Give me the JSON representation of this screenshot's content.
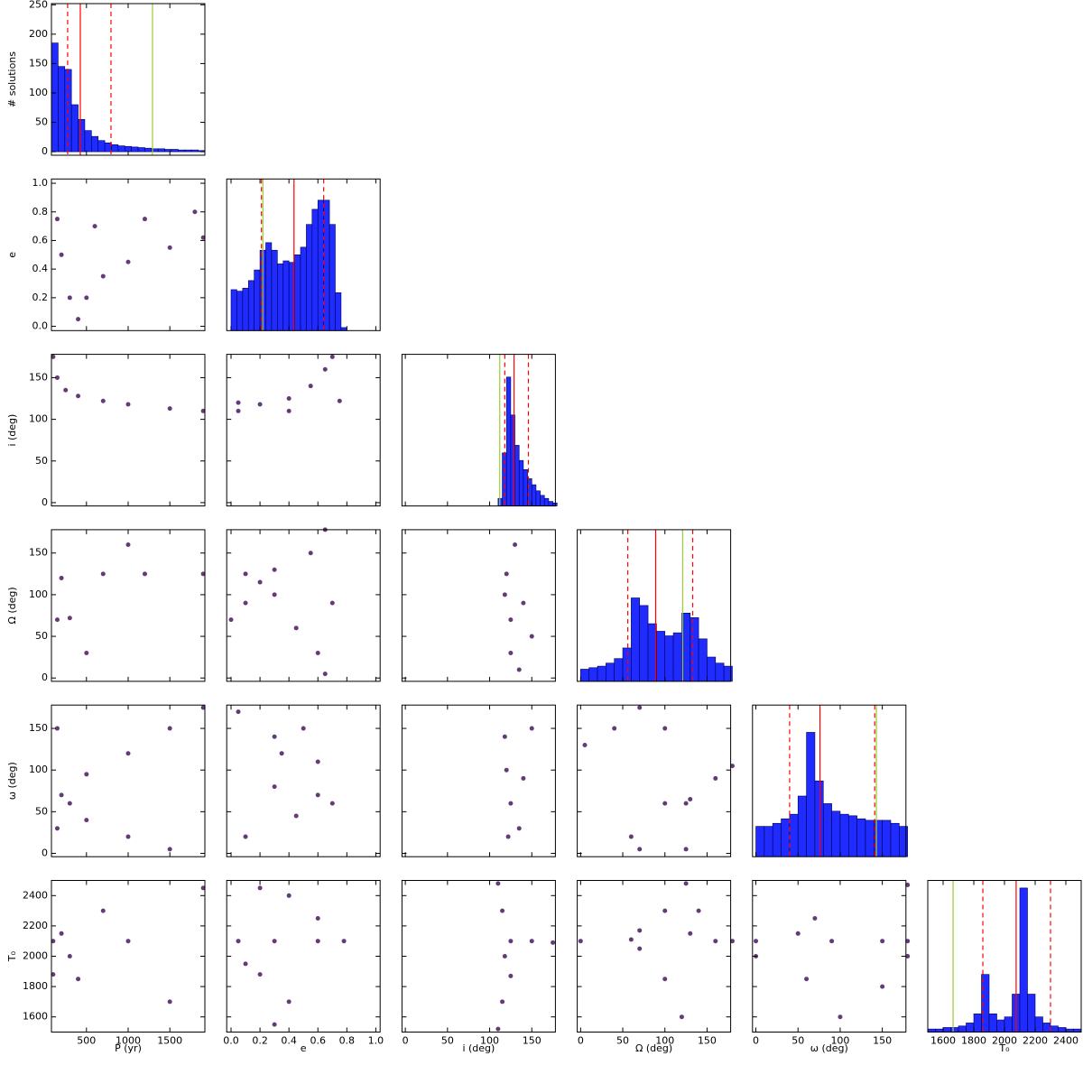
{
  "chart_data": {
    "type": "corner",
    "parameters": [
      {
        "label": "P (yr)",
        "lim": [
          80,
          1920
        ],
        "ticks": [
          500,
          1000,
          1500
        ]
      },
      {
        "label": "e",
        "lim": [
          -0.03,
          1.03
        ],
        "ticks": [
          {
            "value": 0,
            "label": "0.0"
          },
          0.2,
          0.4,
          0.6,
          0.8,
          {
            "value": 1,
            "label": "1.0"
          }
        ]
      },
      {
        "label": "i (deg)",
        "lim": [
          -4,
          178
        ],
        "ticks": [
          0,
          50,
          100,
          150
        ]
      },
      {
        "label": "Ω (deg)",
        "lim": [
          -4,
          178
        ],
        "ticks": [
          0,
          50,
          100,
          150
        ]
      },
      {
        "label": "ω (deg)",
        "lim": [
          -4,
          178
        ],
        "ticks": [
          0,
          50,
          100,
          150
        ]
      },
      {
        "label": "T₀",
        "lim": [
          1500,
          2500
        ],
        "ticks": [
          1600,
          1800,
          2000,
          2200,
          2400
        ]
      }
    ],
    "histogram_color": "#1f2bff",
    "median_color": "#ff0000",
    "truth_color": "#9acd32",
    "point_color": "#3d0a55",
    "histograms": [
      {
        "ylabel": "# solutions",
        "ylim": [
          -6,
          252
        ],
        "yticks": [
          0,
          50,
          100,
          150,
          200,
          250
        ],
        "bins": [
          80,
          160,
          240,
          320,
          400,
          480,
          560,
          640,
          720,
          800,
          880,
          960,
          1040,
          1120,
          1200,
          1280,
          1360,
          1440,
          1520,
          1600,
          1680,
          1760,
          1840,
          1920
        ],
        "counts": [
          185,
          145,
          140,
          80,
          55,
          36,
          26,
          19,
          15,
          12,
          10,
          9,
          8,
          7,
          6,
          5,
          5,
          4,
          4,
          3,
          3,
          3,
          2
        ],
        "lower": 274,
        "median": 426,
        "upper": 794,
        "truth": 1292
      },
      {
        "ylim": [
          0,
          1
        ],
        "bins": [
          0,
          0.04,
          0.08,
          0.12,
          0.16,
          0.2,
          0.24,
          0.28,
          0.32,
          0.36,
          0.4,
          0.44,
          0.48,
          0.52,
          0.56,
          0.6,
          0.64,
          0.68,
          0.72,
          0.76,
          0.8,
          0.84,
          0.88,
          0.92,
          0.96,
          1
        ],
        "counts": [
          0.27,
          0.26,
          0.28,
          0.33,
          0.4,
          0.53,
          0.58,
          0.53,
          0.44,
          0.46,
          0.45,
          0.5,
          0.55,
          0.7,
          0.8,
          0.86,
          0.86,
          0.7,
          0.25,
          0.02,
          0,
          0,
          0,
          0,
          0
        ],
        "lower": 0.21,
        "median": 0.435,
        "upper": 0.64,
        "truth": 0.22
      },
      {
        "ylim": [
          0,
          1
        ],
        "bins": [
          0,
          5,
          10,
          15,
          20,
          25,
          30,
          35,
          40,
          45,
          50,
          55,
          60,
          65,
          70,
          75,
          80,
          85,
          90,
          95,
          100,
          105,
          110,
          115,
          120,
          125,
          130,
          135,
          140,
          145,
          150,
          155,
          160,
          165,
          170,
          175,
          180
        ],
        "counts": [
          0,
          0,
          0,
          0,
          0,
          0,
          0,
          0,
          0,
          0,
          0,
          0,
          0,
          0,
          0,
          0,
          0,
          0,
          0,
          0,
          0,
          0,
          0.05,
          0.35,
          0.85,
          0.6,
          0.4,
          0.3,
          0.24,
          0.18,
          0.14,
          0.1,
          0.07,
          0.05,
          0.03,
          0.02
        ],
        "lower": 118,
        "median": 129,
        "upper": 146,
        "truth": 112
      },
      {
        "ylim": [
          0,
          1
        ],
        "bins": [
          0,
          10,
          20,
          30,
          40,
          50,
          60,
          70,
          80,
          90,
          100,
          110,
          120,
          130,
          140,
          150,
          160,
          170,
          180
        ],
        "counts": [
          0.08,
          0.09,
          0.1,
          0.12,
          0.15,
          0.22,
          0.55,
          0.5,
          0.38,
          0.33,
          0.3,
          0.32,
          0.45,
          0.42,
          0.28,
          0.16,
          0.12,
          0.1
        ],
        "lower": 56,
        "median": 89,
        "upper": 133,
        "truth": 121
      },
      {
        "ylim": [
          0,
          1
        ],
        "bins": [
          0,
          10,
          20,
          30,
          40,
          50,
          60,
          70,
          80,
          90,
          100,
          110,
          120,
          130,
          140,
          150,
          160,
          170,
          180
        ],
        "counts": [
          0.2,
          0.2,
          0.22,
          0.25,
          0.28,
          0.4,
          0.82,
          0.5,
          0.35,
          0.3,
          0.28,
          0.27,
          0.25,
          0.24,
          0.24,
          0.24,
          0.22,
          0.2
        ],
        "lower": 40,
        "median": 76,
        "upper": 141,
        "truth": 143
      },
      {
        "ylim": [
          0,
          1
        ],
        "bins": [
          1500,
          1550,
          1600,
          1650,
          1700,
          1750,
          1800,
          1850,
          1900,
          1950,
          2000,
          2050,
          2100,
          2150,
          2200,
          2250,
          2300,
          2350,
          2400,
          2450,
          2500
        ],
        "counts": [
          0.02,
          0.02,
          0.03,
          0.03,
          0.04,
          0.06,
          0.12,
          0.38,
          0.12,
          0.08,
          0.1,
          0.25,
          0.95,
          0.25,
          0.1,
          0.06,
          0.04,
          0.03,
          0.02,
          0.02
        ],
        "lower": 1859,
        "median": 2076,
        "upper": 2300,
        "truth": 1665
      }
    ],
    "panels": [
      {
        "x": [
          150,
          200,
          300,
          400,
          500,
          700,
          1000,
          1500,
          1900,
          600,
          1200,
          1800
        ],
        "y": [
          0.75,
          0.5,
          0.2,
          0.05,
          0.2,
          0.35,
          0.45,
          0.55,
          0.62,
          0.7,
          0.75,
          0.8
        ]
      },
      {
        "x": [
          100,
          150,
          250,
          400,
          700,
          1000,
          1500,
          1900
        ],
        "y": [
          175,
          150,
          135,
          128,
          122,
          118,
          113,
          110
        ]
      },
      {
        "x": [
          0.05,
          0.2,
          0.4,
          0.55,
          0.65,
          0.7,
          0.05,
          0.4,
          0.75
        ],
        "y": [
          120,
          118,
          125,
          140,
          160,
          175,
          110,
          110,
          122
        ]
      },
      {
        "x": [
          150,
          300,
          200,
          700,
          1200,
          1900,
          500,
          1000
        ],
        "y": [
          70,
          72,
          120,
          125,
          125,
          125,
          30,
          160
        ]
      },
      {
        "x": [
          0,
          0.1,
          0.2,
          0.3,
          0.45,
          0.6,
          0.65,
          0.1,
          0.3,
          0.55,
          0.65,
          0.7
        ],
        "y": [
          70,
          90,
          115,
          100,
          60,
          30,
          5,
          125,
          130,
          150,
          178,
          90
        ]
      },
      {
        "x": [
          125,
          120,
          118,
          125,
          130,
          140,
          150,
          135
        ],
        "y": [
          70,
          125,
          100,
          30,
          160,
          90,
          50,
          10
        ]
      },
      {
        "x": [
          200,
          300,
          500,
          1000,
          1500,
          500,
          1000,
          1500,
          1900,
          150,
          150
        ],
        "y": [
          70,
          60,
          40,
          20,
          5,
          95,
          120,
          150,
          175,
          30,
          150
        ]
      },
      {
        "x": [
          0.1,
          0.3,
          0.5,
          0.6,
          0.6,
          0.45,
          0.3,
          0.35,
          0.7,
          0.05
        ],
        "y": [
          20,
          140,
          150,
          110,
          70,
          45,
          80,
          120,
          60,
          170
        ]
      },
      {
        "x": [
          125,
          120,
          118,
          122,
          140,
          150,
          135
        ],
        "y": [
          60,
          100,
          140,
          20,
          90,
          150,
          30
        ]
      },
      {
        "x": [
          5,
          40,
          70,
          70,
          100,
          125,
          130,
          160,
          180,
          125,
          60,
          100
        ],
        "y": [
          130,
          150,
          175,
          5,
          60,
          60,
          65,
          90,
          105,
          5,
          20,
          150
        ]
      },
      {
        "x": [
          100,
          200,
          300,
          100,
          400,
          700,
          1000,
          1500,
          1900
        ],
        "y": [
          2100,
          2150,
          2000,
          1880,
          1850,
          2300,
          2100,
          1700,
          2450
        ]
      },
      {
        "x": [
          0.05,
          0.3,
          0.6,
          0.78,
          0.6,
          0.4,
          0.2,
          0.2,
          0.4,
          0.3,
          0.1
        ],
        "y": [
          2100,
          2100,
          2100,
          2100,
          2250,
          2400,
          2450,
          1880,
          1700,
          1550,
          1950
        ]
      },
      {
        "x": [
          125,
          150,
          175,
          115,
          110,
          125,
          115,
          110,
          118
        ],
        "y": [
          2100,
          2100,
          2090,
          2300,
          2480,
          1870,
          1700,
          1520,
          2000
        ]
      },
      {
        "x": [
          0,
          60,
          70,
          70,
          100,
          120,
          130,
          140,
          125,
          160,
          180,
          100
        ],
        "y": [
          2100,
          2110,
          2170,
          2050,
          1850,
          1600,
          2150,
          2300,
          2480,
          2100,
          2100,
          2300
        ]
      },
      {
        "x": [
          0,
          50,
          70,
          90,
          150,
          180,
          0,
          180,
          60,
          180,
          100,
          150
        ],
        "y": [
          2100,
          2150,
          2250,
          2100,
          2100,
          2100,
          2000,
          2470,
          1850,
          2000,
          1600,
          1800
        ]
      }
    ]
  }
}
